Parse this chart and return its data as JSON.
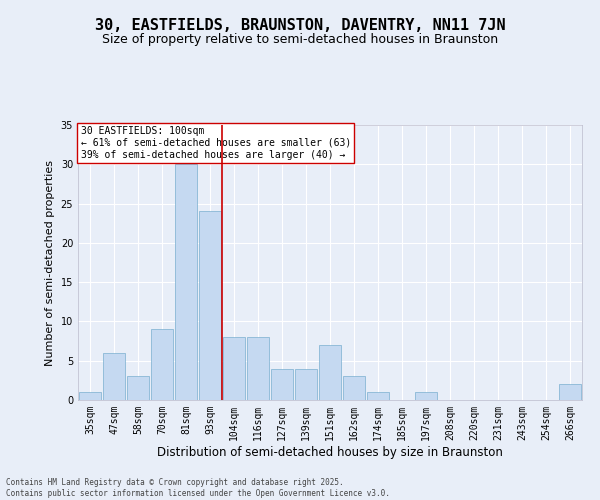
{
  "title": "30, EASTFIELDS, BRAUNSTON, DAVENTRY, NN11 7JN",
  "subtitle": "Size of property relative to semi-detached houses in Braunston",
  "xlabel": "Distribution of semi-detached houses by size in Braunston",
  "ylabel": "Number of semi-detached properties",
  "categories": [
    "35sqm",
    "47sqm",
    "58sqm",
    "70sqm",
    "81sqm",
    "93sqm",
    "104sqm",
    "116sqm",
    "127sqm",
    "139sqm",
    "151sqm",
    "162sqm",
    "174sqm",
    "185sqm",
    "197sqm",
    "208sqm",
    "220sqm",
    "231sqm",
    "243sqm",
    "254sqm",
    "266sqm"
  ],
  "values": [
    1,
    6,
    3,
    9,
    30,
    24,
    8,
    8,
    4,
    4,
    7,
    3,
    1,
    0,
    1,
    0,
    0,
    0,
    0,
    0,
    2
  ],
  "bar_color": "#c5d9f1",
  "bar_edge_color": "#7aafcf",
  "vline_x_index": 6,
  "vline_color": "#cc0000",
  "annotation_text": "30 EASTFIELDS: 100sqm\n← 61% of semi-detached houses are smaller (63)\n39% of semi-detached houses are larger (40) →",
  "annotation_box_color": "#ffffff",
  "annotation_box_edge": "#cc0000",
  "ylim": [
    0,
    35
  ],
  "yticks": [
    0,
    5,
    10,
    15,
    20,
    25,
    30,
    35
  ],
  "background_color": "#e8eef8",
  "plot_background": "#e8eef8",
  "footer_text": "Contains HM Land Registry data © Crown copyright and database right 2025.\nContains public sector information licensed under the Open Government Licence v3.0.",
  "title_fontsize": 11,
  "subtitle_fontsize": 9,
  "xlabel_fontsize": 8.5,
  "ylabel_fontsize": 8,
  "tick_fontsize": 7,
  "annotation_fontsize": 7,
  "footer_fontsize": 5.5
}
